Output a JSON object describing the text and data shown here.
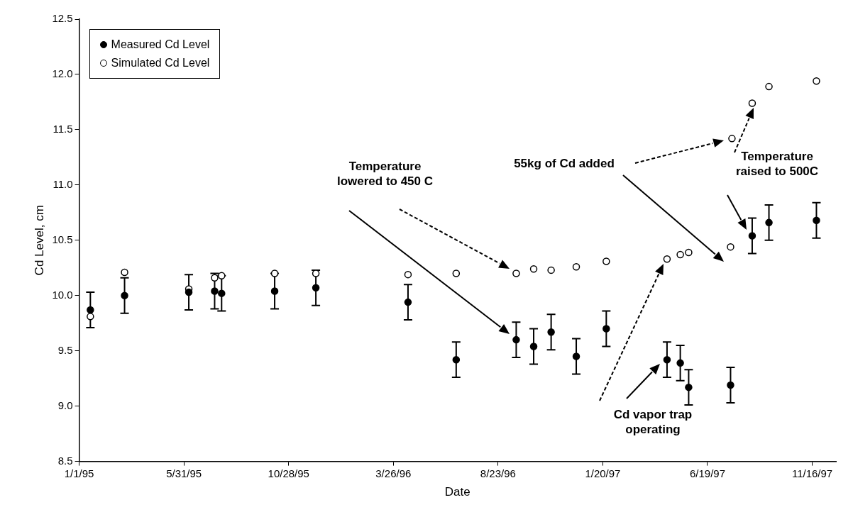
{
  "chart_data": {
    "type": "scatter",
    "xlabel": "Date",
    "ylabel": "Cd Level, cm",
    "xlim": [
      "1995-01-01",
      "1997-12-20"
    ],
    "xticks": [
      {
        "value": "1995-01-01",
        "label": "1/1/95"
      },
      {
        "value": "1995-05-31",
        "label": "5/31/95"
      },
      {
        "value": "1995-10-28",
        "label": "10/28/95"
      },
      {
        "value": "1996-03-26",
        "label": "3/26/96"
      },
      {
        "value": "1996-08-23",
        "label": "8/23/96"
      },
      {
        "value": "1997-01-20",
        "label": "1/20/97"
      },
      {
        "value": "1997-06-19",
        "label": "6/19/97"
      },
      {
        "value": "1997-11-16",
        "label": "11/16/97"
      }
    ],
    "ylim": [
      8.5,
      12.5
    ],
    "yticks": [
      8.5,
      {
        "value": 9,
        "label": "9.0"
      },
      9.5,
      {
        "value": 10,
        "label": "10.0"
      },
      10.5,
      {
        "value": 11,
        "label": "11.0"
      },
      11.5,
      {
        "value": 12,
        "label": "12.0"
      },
      12.5
    ],
    "grid": false,
    "legend": "top left",
    "marker": "circle",
    "series": [
      {
        "name": "Measured Cd Level",
        "color": "#000000",
        "x": [
          "1995-01-17",
          "1995-03-07",
          "1995-06-07",
          "1995-07-14",
          "1995-07-24",
          "1995-10-08",
          "1995-12-06",
          "1996-04-16",
          "1996-06-24",
          "1996-09-18",
          "1996-10-13",
          "1996-11-07",
          "1996-12-13",
          "1997-01-25",
          "1997-04-22",
          "1997-05-11",
          "1997-05-23",
          "1997-07-22",
          "1997-08-22",
          "1997-09-15",
          "1997-11-22"
        ],
        "values": [
          9.87,
          10.0,
          10.03,
          10.04,
          10.02,
          10.04,
          10.07,
          9.94,
          9.42,
          9.6,
          9.54,
          9.67,
          9.45,
          9.7,
          9.42,
          9.39,
          9.17,
          9.19,
          10.54,
          10.66,
          10.68
        ],
        "errors": [
          0.16,
          0.16,
          0.16,
          0.16,
          0.16,
          0.16,
          0.16,
          0.16,
          0.16,
          0.16,
          0.16,
          0.16,
          0.16,
          0.16,
          0.16,
          0.16,
          0.16,
          0.16,
          0.16,
          0.16,
          0.16
        ]
      },
      {
        "name": "Simulated Cd Level",
        "color": "#000000",
        "x": [
          "1995-01-17",
          "1995-03-07",
          "1995-06-07",
          "1995-07-14",
          "1995-07-24",
          "1995-10-08",
          "1995-12-06",
          "1996-04-16",
          "1996-06-24",
          "1996-09-18",
          "1996-10-13",
          "1996-11-07",
          "1996-12-13",
          "1997-01-25",
          "1997-04-22",
          "1997-05-11",
          "1997-05-23",
          "1997-07-22",
          "1997-07-24",
          "1997-08-22",
          "1997-09-15",
          "1997-11-22"
        ],
        "values": [
          9.81,
          10.21,
          10.06,
          10.16,
          10.18,
          10.2,
          10.2,
          10.19,
          10.2,
          10.2,
          10.24,
          10.23,
          10.26,
          10.31,
          10.33,
          10.37,
          10.39,
          10.44,
          11.42,
          11.74,
          11.89,
          11.94
        ]
      }
    ],
    "annotations": [
      "Temperature lowered to 450 C",
      "55kg of Cd added",
      "Temperature raised to 500C",
      "Cd vapor trap operating"
    ]
  }
}
